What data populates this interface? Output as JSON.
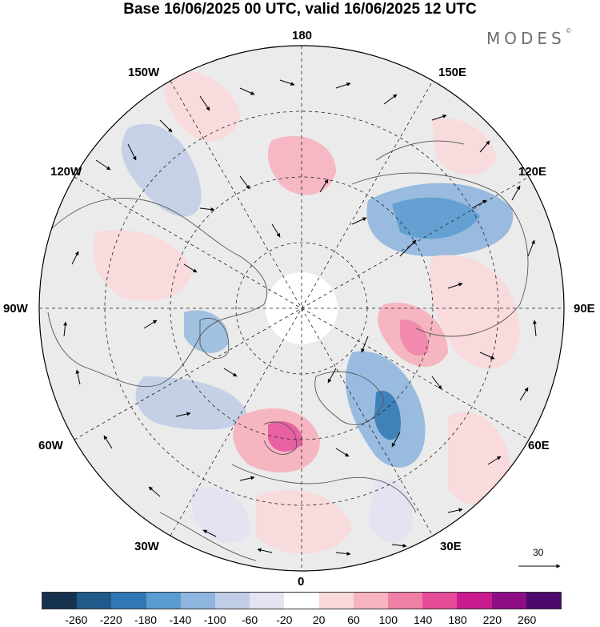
{
  "title": "Base 16/06/2025 00 UTC, valid 16/06/2025 12 UTC",
  "brand": "MODES",
  "brand_mark": "©",
  "longitude_labels": {
    "top": "180",
    "bottom": "0",
    "left": "90W",
    "right": "90E",
    "upper_left_1": "150W",
    "upper_left_2": "120W",
    "upper_right_1": "150E",
    "upper_right_2": "120E",
    "lower_left_1": "60W",
    "lower_left_2": "30W",
    "lower_right_1": "60E",
    "lower_right_2": "30E"
  },
  "reference_vector_label": "30",
  "colorbar": {
    "colors": [
      "#16324f",
      "#1f5a8a",
      "#2f78b4",
      "#5b9cd0",
      "#8fb6de",
      "#c0cde6",
      "#e3e3f2",
      "#ffffff",
      "#fad9dc",
      "#f6b3c0",
      "#f07fa6",
      "#e54c9a",
      "#c91b8f",
      "#8e0e86",
      "#4c0a6e"
    ],
    "tick_labels": [
      "-260",
      "-220",
      "-180",
      "-140",
      "-100",
      "-60",
      "-20",
      "20",
      "60",
      "100",
      "140",
      "180",
      "220",
      "260"
    ]
  }
}
